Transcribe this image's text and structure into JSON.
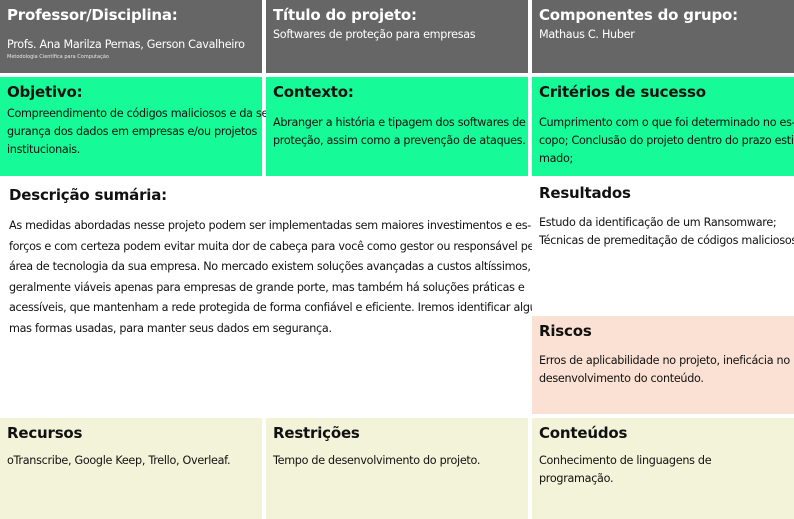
{
  "professor": {
    "title": "Professor/Disciplina:",
    "names": "Profs. Ana Marilza Pernas, Gerson Cavalheiro",
    "course": "Metodologia Científica para Computação"
  },
  "titulo": {
    "title": "Título do projeto:",
    "text": "Softwares de proteção para empresas"
  },
  "componentes": {
    "title": "Componentes do grupo:",
    "text": "Mathaus C. Huber"
  },
  "objetivo": {
    "title": "Objetivo:",
    "lines": [
      "Compreendimento de códigos maliciosos e da se-",
      "gurança dos dados em empresas e/ou projetos",
      "institucionais."
    ]
  },
  "contexto": {
    "title": "Contexto:",
    "lines": [
      "Abranger a história e tipagem dos softwares de",
      "proteção, assim como a prevenção de ataques."
    ]
  },
  "criterios": {
    "title": "Critérios de sucesso",
    "lines": [
      "Cumprimento com o que foi determinado no es-",
      "copo; Conclusão do projeto dentro do prazo esti-",
      "mado;"
    ]
  },
  "descricao": {
    "title": "Descrição sumária:",
    "lines": [
      "As medidas abordadas nesse projeto podem ser implementadas sem maiores investimentos e es-",
      "forços e com certeza podem evitar muita dor de cabeça para você como gestor ou responsável pela",
      "área de tecnologia da sua empresa.  No mercado existem soluções avançadas a custos altíssimos,",
      "geralmente viáveis apenas para empresas de grande porte, mas também há soluções práticas e",
      "acessíveis, que mantenham a rede protegida de forma confiável e eficiente.  Iremos identificar algu-",
      "mas formas usadas, para manter seus dados em segurança."
    ]
  },
  "resultados": {
    "title": "Resultados",
    "lines": [
      "Estudo da identificação de um Ransomware;",
      "Técnicas de premeditação de códigos maliciosos."
    ]
  },
  "riscos": {
    "title": "Riscos",
    "lines": [
      "Erros de aplicabilidade no projeto, ineficácia no",
      "desenvolvimento do conteúdo."
    ]
  },
  "recursos": {
    "title": "Recursos",
    "text": "oTranscribe, Google Keep, Trello, Overleaf."
  },
  "restricoes": {
    "title": "Restrições",
    "text": "Tempo de desenvolvimento do projeto."
  },
  "conteudos": {
    "title": "Conteúdos",
    "text": "Conhecimento de linguagens de programação."
  },
  "colors": {
    "header": "#666666",
    "green": "#16fb98",
    "risk": "#fbe1d3",
    "bottom": "#f3f3d9"
  }
}
